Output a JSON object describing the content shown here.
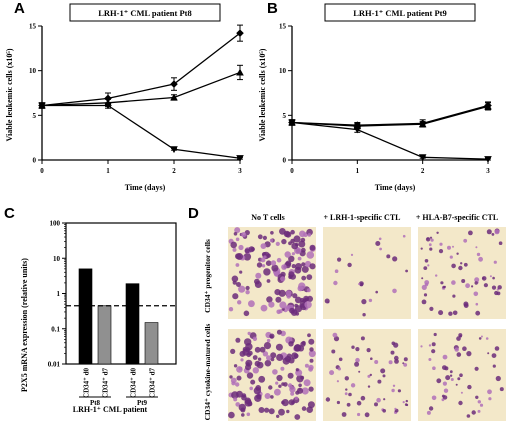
{
  "chart_data": [
    {
      "panel": "A",
      "type": "line",
      "title": "LRH-1⁺ CML patient Pt8",
      "xlabel": "Time (days)",
      "ylabel": "Viable leukemic cells (x10⁵)",
      "xlim": [
        0,
        3
      ],
      "ylim": [
        0,
        15
      ],
      "xticks": [
        "0",
        "1",
        "2",
        "3"
      ],
      "yticks": [
        "0",
        "5",
        "10",
        "15"
      ],
      "x": [
        0,
        1,
        2,
        3
      ],
      "series": [
        {
          "marker": "diamond",
          "values": [
            6.1,
            6.9,
            8.5,
            14.2
          ],
          "err": [
            0.3,
            0.6,
            0.7,
            0.9
          ]
        },
        {
          "marker": "triangle-up",
          "values": [
            6.1,
            6.4,
            7.0,
            9.8
          ],
          "err": [
            0.3,
            0.4,
            0.3,
            0.8
          ]
        },
        {
          "marker": "triangle-down",
          "values": [
            6.1,
            6.1,
            1.2,
            0.2
          ],
          "err": [
            0.3,
            0.3,
            0.1,
            0.1
          ]
        }
      ]
    },
    {
      "panel": "B",
      "type": "line",
      "title": "LRH-1⁺ CML patient Pt9",
      "xlabel": "Time (days)",
      "ylabel": "Viable leukemic cells (x10⁵)",
      "xlim": [
        0,
        3
      ],
      "ylim": [
        0,
        15
      ],
      "xticks": [
        "0",
        "1",
        "2",
        "3"
      ],
      "yticks": [
        "0",
        "5",
        "10",
        "15"
      ],
      "x": [
        0,
        1,
        2,
        3
      ],
      "series": [
        {
          "marker": "diamond",
          "values": [
            4.2,
            3.9,
            4.1,
            6.1
          ],
          "err": [
            0.3,
            0.3,
            0.4,
            0.4
          ]
        },
        {
          "marker": "triangle-up",
          "values": [
            4.2,
            3.8,
            4.0,
            6.0
          ],
          "err": [
            0.3,
            0.3,
            0.3,
            0.4
          ]
        },
        {
          "marker": "triangle-down",
          "values": [
            4.2,
            3.4,
            0.3,
            0.1
          ],
          "err": [
            0.3,
            0.3,
            0.1,
            0.1
          ]
        }
      ]
    },
    {
      "panel": "C",
      "type": "bar",
      "yscale": "log",
      "ylabel": "P2X5 mRNA expression (relative units)",
      "ylim": [
        0.01,
        100
      ],
      "yticks": [
        "0.01",
        "0.1",
        "1",
        "10",
        "100"
      ],
      "reference_line": 0.45,
      "categories": [
        "CD34⁺ d0",
        "CD34⁺ d7",
        "CD34⁺ d0",
        "CD34⁺ d7"
      ],
      "groups": [
        "Pt8",
        "Pt9"
      ],
      "values": [
        5.0,
        0.45,
        1.9,
        0.15
      ],
      "bar_colors": [
        "#000000",
        "#909090",
        "#000000",
        "#909090"
      ],
      "xlabel": "LRH-1⁺ CML patient"
    }
  ],
  "micrographs": {
    "panel": "D",
    "columns": [
      "No T cells",
      "+ LRH-1-specific CTL",
      "+ HLA-B7-specific CTL"
    ],
    "rows": [
      "CD34⁺ progenitor cells",
      "CD34⁺ cytokine-matured cells"
    ]
  },
  "colors": {
    "micro_bg": "#f3e8c9",
    "cell_dark": "#6b2c7a",
    "cell_light": "#b070b8"
  }
}
